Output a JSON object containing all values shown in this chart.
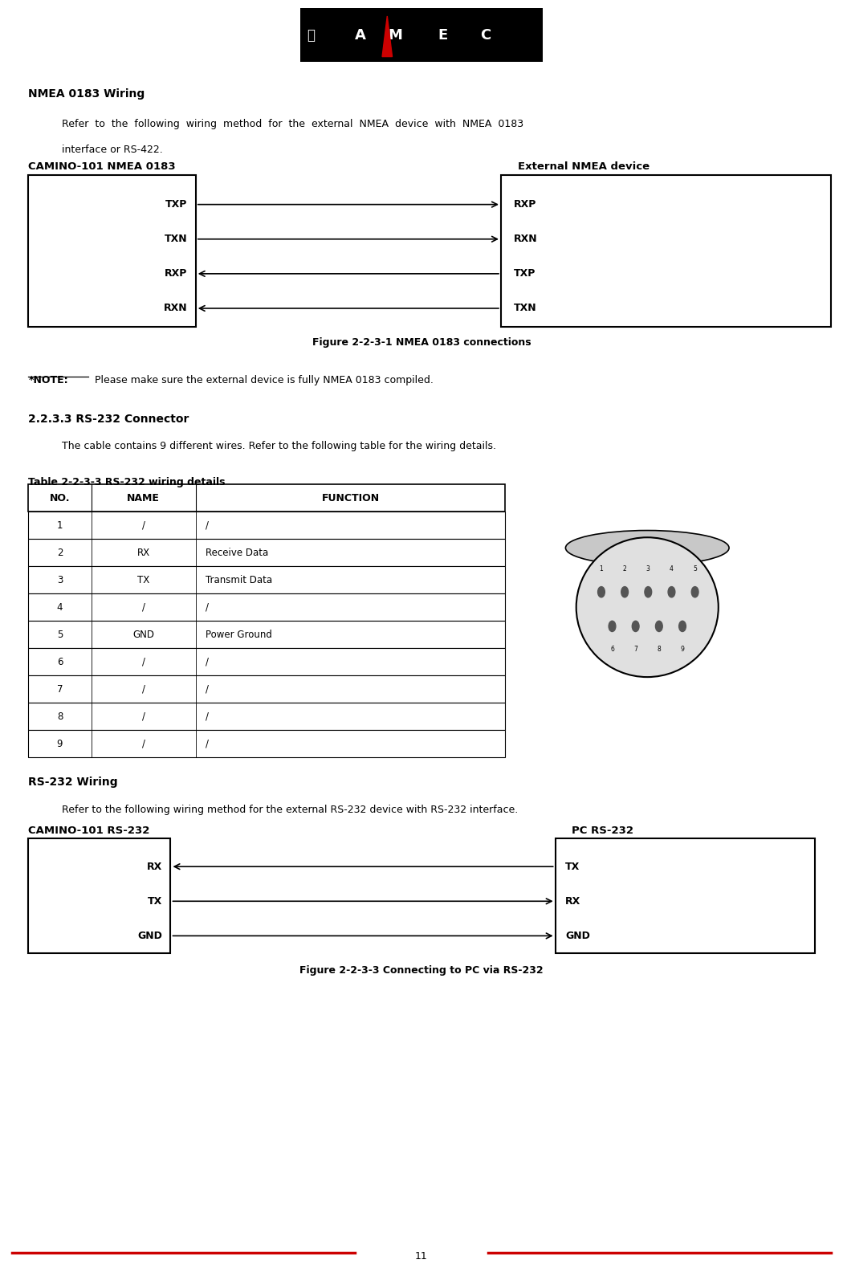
{
  "page_width": 10.5,
  "page_height": 15.89,
  "bg_color": "#ffffff",
  "nmea_wiring_title": "NMEA 0183 Wiring",
  "nmea_wiring_body_line1": "Refer  to  the  following  wiring  method  for  the  external  NMEA  device  with  NMEA  0183",
  "nmea_wiring_body_line2": "interface or RS-422.",
  "nmea_left_label": "CAMINO-101 NMEA 0183",
  "nmea_right_label": "External NMEA device",
  "nmea_left_signals": [
    "TXP",
    "TXN",
    "RXP",
    "RXN"
  ],
  "nmea_right_signals": [
    "RXP",
    "RXN",
    "TXP",
    "TXN"
  ],
  "nmea_arrows": [
    "right",
    "right",
    "left",
    "left"
  ],
  "fig_nmea_caption": "Figure 2-2-3-1 NMEA 0183 connections",
  "note_label": "*NOTE:",
  "note_text": " Please make sure the external device is fully NMEA 0183 compiled.",
  "section_title": "2.2.3.3 RS-232 Connector",
  "section_body": "The cable contains 9 different wires. Refer to the following table for the wiring details.",
  "table_caption": "Table 2-2-3-3 RS-232 wiring details",
  "table_headers": [
    "NO.",
    "NAME",
    "FUNCTION"
  ],
  "table_rows": [
    [
      "1",
      "/",
      "/"
    ],
    [
      "2",
      "RX",
      "Receive Data"
    ],
    [
      "3",
      "TX",
      "Transmit Data"
    ],
    [
      "4",
      "/",
      "/"
    ],
    [
      "5",
      "GND",
      "Power Ground"
    ],
    [
      "6",
      "/",
      "/"
    ],
    [
      "7",
      "/",
      "/"
    ],
    [
      "8",
      "/",
      "/"
    ],
    [
      "9",
      "/",
      "/"
    ]
  ],
  "rs232_wiring_title": "RS-232 Wiring",
  "rs232_wiring_body": "Refer to the following wiring method for the external RS-232 device with RS-232 interface.",
  "rs232_left_label": "CAMINO-101 RS-232",
  "rs232_right_label": "PC RS-232",
  "rs232_left_signals": [
    "RX",
    "TX",
    "GND"
  ],
  "rs232_right_signals": [
    "TX",
    "RX",
    "GND"
  ],
  "rs232_arrows": [
    "left",
    "right",
    "right"
  ],
  "fig_rs232_caption": "Figure 2-2-3-3 Connecting to PC via RS-232",
  "footer_number": "11",
  "footer_line_color": "#cc0000"
}
